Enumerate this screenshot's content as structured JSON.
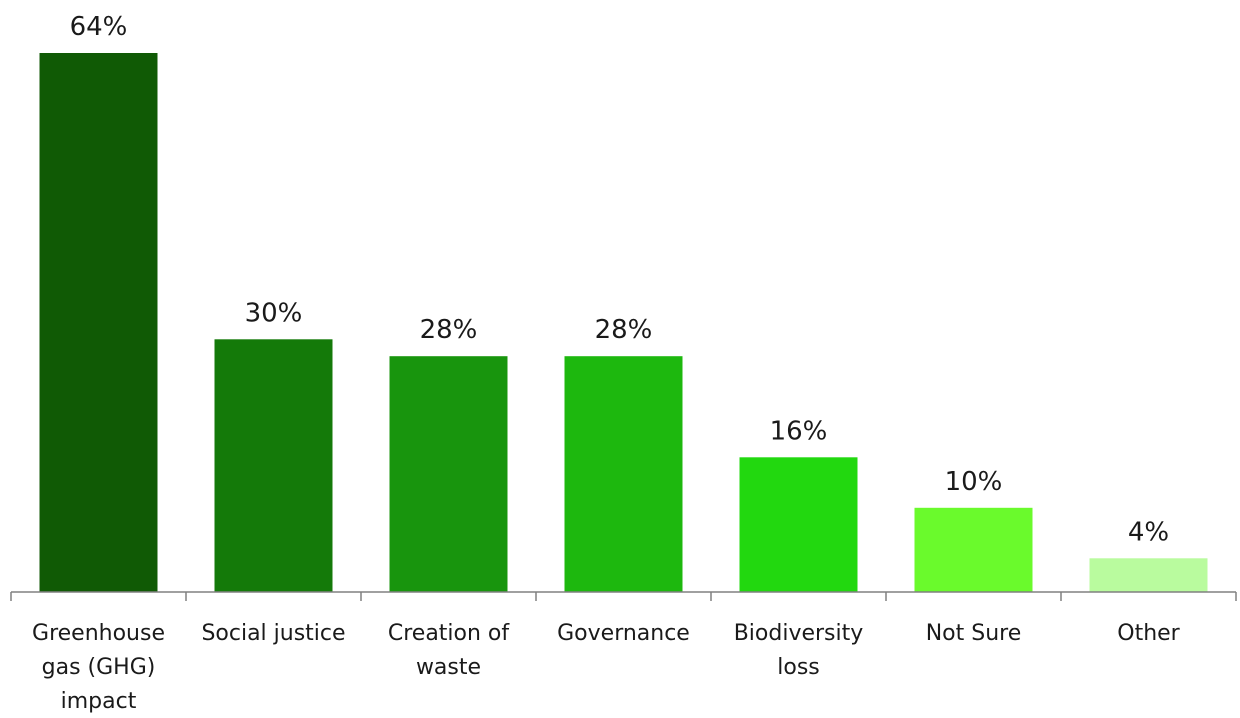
{
  "chart_data": {
    "type": "bar",
    "title": "",
    "xlabel": "",
    "ylabel": "",
    "ylim": [
      0,
      70
    ],
    "grid": false,
    "legend": "none",
    "categories": [
      [
        "Greenhouse",
        "gas (GHG)",
        "impact"
      ],
      [
        "Social justice"
      ],
      [
        "Creation of",
        "waste"
      ],
      [
        "Governance"
      ],
      [
        "Biodiversity",
        "loss"
      ],
      [
        "Not Sure"
      ],
      [
        "Other"
      ]
    ],
    "values": [
      64,
      30,
      28,
      28,
      16,
      10,
      4
    ],
    "value_labels": [
      "64%",
      "30%",
      "28%",
      "28%",
      "16%",
      "10%",
      "4%"
    ],
    "colors": [
      "#105a05",
      "#147a09",
      "#18950d",
      "#1db80e",
      "#22d80f",
      "#6afa2c",
      "#b9fb9e"
    ]
  }
}
